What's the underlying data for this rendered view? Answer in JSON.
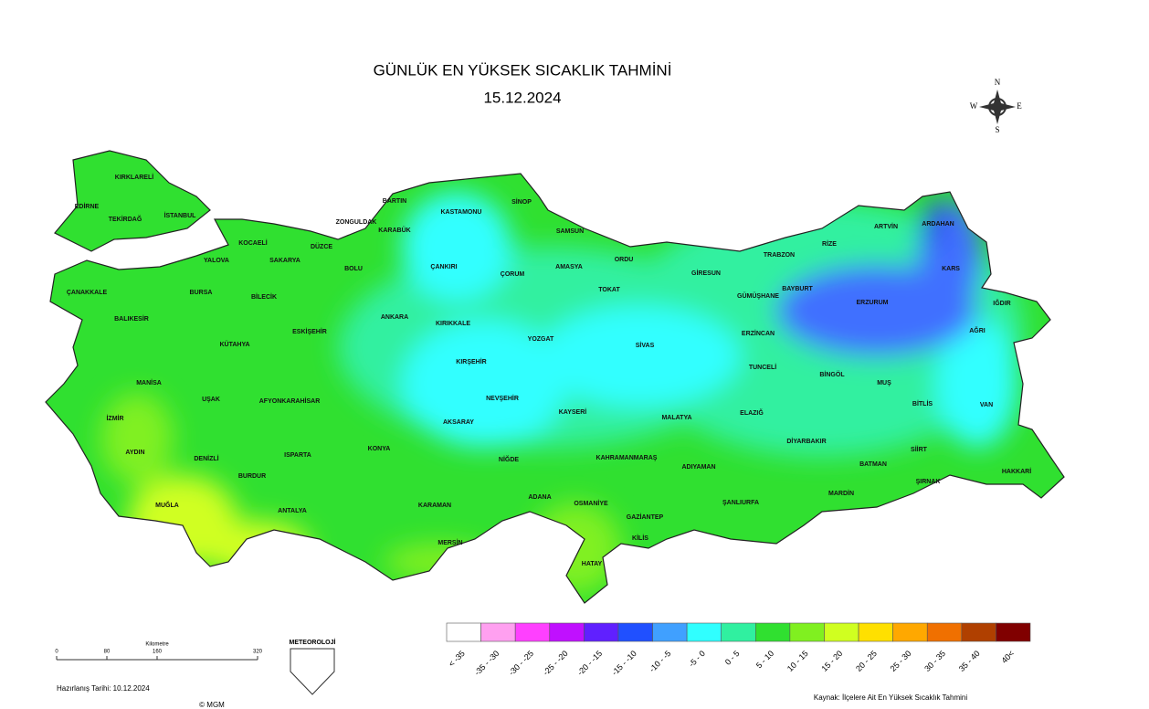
{
  "header": {
    "title": "GÜNLÜK EN YÜKSEK SICAKLIK TAHMİNİ",
    "date": "15.12.2024"
  },
  "compass": {
    "n": "N",
    "s": "S",
    "e": "E",
    "w": "W"
  },
  "provinces": [
    "KIRKLARELİ",
    "EDİRNE",
    "TEKİRDAĞ",
    "İSTANBUL",
    "KOCAELİ",
    "YALOVA",
    "SAKARYA",
    "DÜZCE",
    "BARTIN",
    "ZONGULDAK",
    "KARABÜK",
    "KASTAMONU",
    "SİNOP",
    "SAMSUN",
    "BOLU",
    "ÇANKIRI",
    "ÇORUM",
    "AMASYA",
    "ORDU",
    "GİRESUN",
    "TRABZON",
    "RİZE",
    "ARTVİN",
    "ARDAHAN",
    "KARS",
    "IĞDIR",
    "BAYBURT",
    "GÜMÜŞHANE",
    "ERZURUM",
    "AĞRI",
    "ERZİNCAN",
    "TOKAT",
    "SİVAS",
    "YOZGAT",
    "KIRIKKALE",
    "ANKARA",
    "BİLECİK",
    "BURSA",
    "ÇANAKKALE",
    "BALIKESİR",
    "ESKİŞEHİR",
    "KÜTAHYA",
    "MANİSA",
    "UŞAK",
    "AFYONKARAHİSAR",
    "KIRŞEHİR",
    "NEVŞEHİR",
    "KAYSERİ",
    "TUNCELİ",
    "BİNGÖL",
    "MUŞ",
    "BİTLİS",
    "VAN",
    "MALATYA",
    "ELAZIĞ",
    "DİYARBAKIR",
    "İZMİR",
    "AYDIN",
    "DENİZLİ",
    "ISPARTA",
    "KONYA",
    "AKSARAY",
    "NİĞDE",
    "KAHRAMANMARAŞ",
    "ADIYAMAN",
    "BATMAN",
    "SİİRT",
    "ŞIRNAK",
    "HAKKARİ",
    "MARDİN",
    "ŞANLIURFA",
    "GAZİANTEP",
    "OSMANİYE",
    "ADANA",
    "KİLİS",
    "HATAY",
    "MERSİN",
    "KARAMAN",
    "ANTALYA",
    "BURDUR",
    "MUĞLA"
  ],
  "legend": [
    {
      "label": "< -35",
      "color": "#ffffff"
    },
    {
      "label": "-35 - -30",
      "color": "#ffa0f0"
    },
    {
      "label": "-30 - -25",
      "color": "#ff40ff"
    },
    {
      "label": "-25 - -20",
      "color": "#c010ff"
    },
    {
      "label": "-20 - -15",
      "color": "#6020ff"
    },
    {
      "label": "-15 - -10",
      "color": "#2050ff"
    },
    {
      "label": "-10 - -5",
      "color": "#40a0ff"
    },
    {
      "label": "-5 - 0",
      "color": "#30ffff"
    },
    {
      "label": "0 - 5",
      "color": "#30f0a0"
    },
    {
      "label": "5 - 10",
      "color": "#30e030"
    },
    {
      "label": "10 - 15",
      "color": "#80f020"
    },
    {
      "label": "15 - 20",
      "color": "#d0ff20"
    },
    {
      "label": "20 - 25",
      "color": "#ffe000"
    },
    {
      "label": "25 - 30",
      "color": "#ffa800"
    },
    {
      "label": "30 - 35",
      "color": "#f07000"
    },
    {
      "label": "35 - 40",
      "color": "#b04000"
    },
    {
      "label": "40<",
      "color": "#800000"
    }
  ],
  "scale": {
    "title": "Kilometre",
    "ticks": [
      0,
      80,
      160,
      320
    ]
  },
  "footer": {
    "prepared": "Hazırlanış Tarihi:  10.12.2024",
    "copyright": "© MGM",
    "logo": "METEOROLOJİ",
    "source": "Kaynak: İlçelere Ait En Yüksek Sıcaklık Tahmini"
  }
}
